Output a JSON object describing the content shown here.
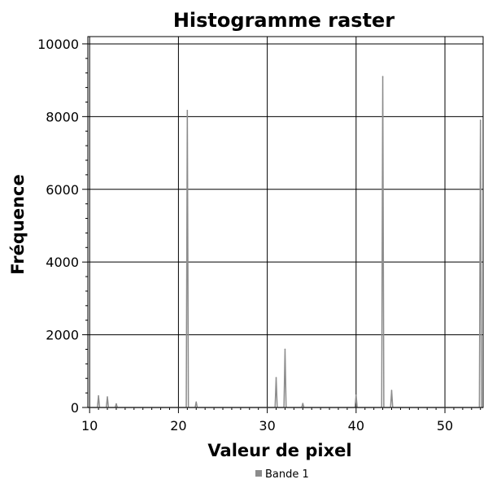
{
  "chart_data": {
    "type": "line",
    "title": "Histogramme raster",
    "xlabel": "Valeur de pixel",
    "ylabel": "Fréquence",
    "xlim": [
      9.8,
      54.3
    ],
    "ylim": [
      0,
      10200
    ],
    "x_ticks": [
      10,
      20,
      30,
      40,
      50
    ],
    "y_ticks": [
      0,
      2000,
      4000,
      6000,
      8000,
      10000
    ],
    "grid": true,
    "legend_position": "bottom-center",
    "series": [
      {
        "name": "Bande 1",
        "color": "#8c8c8c",
        "x": [
          11,
          12,
          13,
          21,
          22,
          31,
          32,
          34,
          40,
          43,
          44,
          54
        ],
        "y": [
          320,
          290,
          100,
          8170,
          150,
          820,
          1600,
          110,
          340,
          9100,
          470,
          7900
        ]
      }
    ]
  }
}
